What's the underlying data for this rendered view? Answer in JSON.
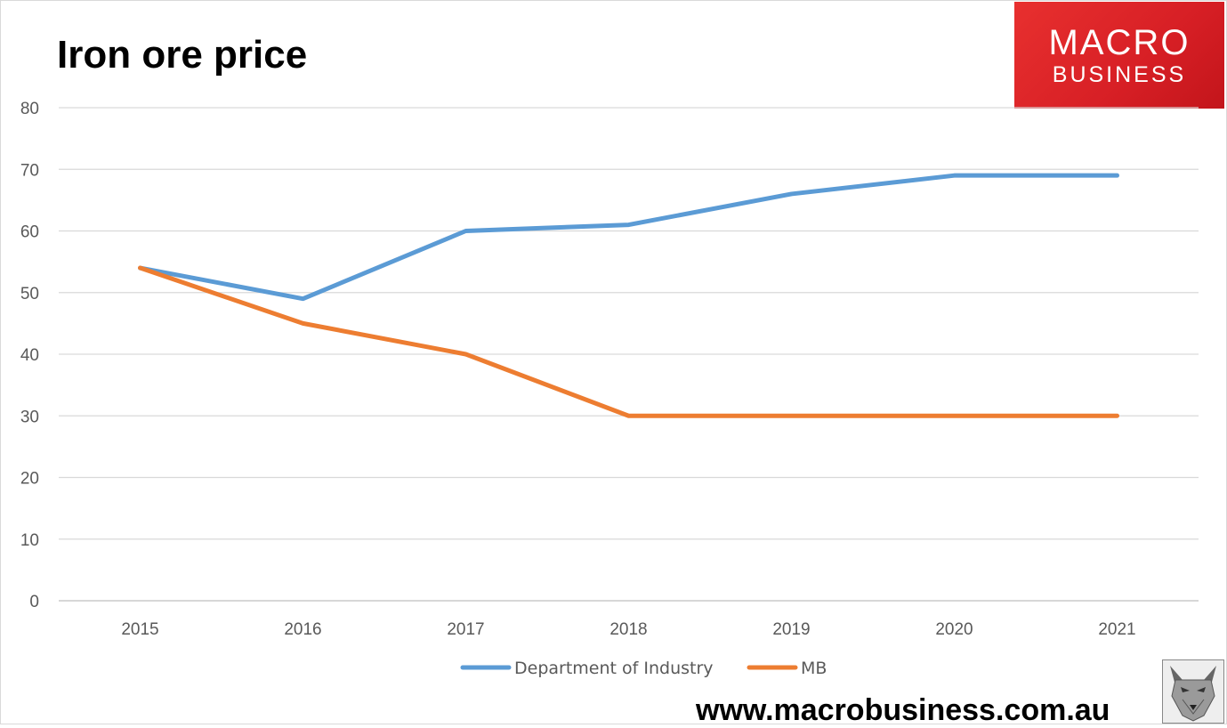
{
  "header": {
    "title": "Iron ore price"
  },
  "logo": {
    "line1": "MACRO",
    "line2": "BUSINESS",
    "color": "#e2252b"
  },
  "footer": {
    "url": "www.macrobusiness.com.au"
  },
  "mascot": {
    "icon": "wolf-icon"
  },
  "chart_data": {
    "type": "line",
    "title": "Iron ore price",
    "xlabel": "",
    "ylabel": "",
    "categories": [
      "2015",
      "2016",
      "2017",
      "2018",
      "2019",
      "2020",
      "2021"
    ],
    "ylim": [
      0,
      80
    ],
    "yticks": [
      0,
      10,
      20,
      30,
      40,
      50,
      60,
      70,
      80
    ],
    "grid": true,
    "legend_position": "bottom",
    "series": [
      {
        "name": "Department of Industry",
        "color": "#5b9bd5",
        "values": [
          54,
          49,
          60,
          61,
          66,
          69,
          69
        ]
      },
      {
        "name": "MB",
        "color": "#ed7d31",
        "values": [
          54,
          45,
          40,
          30,
          30,
          30,
          30
        ]
      }
    ]
  }
}
